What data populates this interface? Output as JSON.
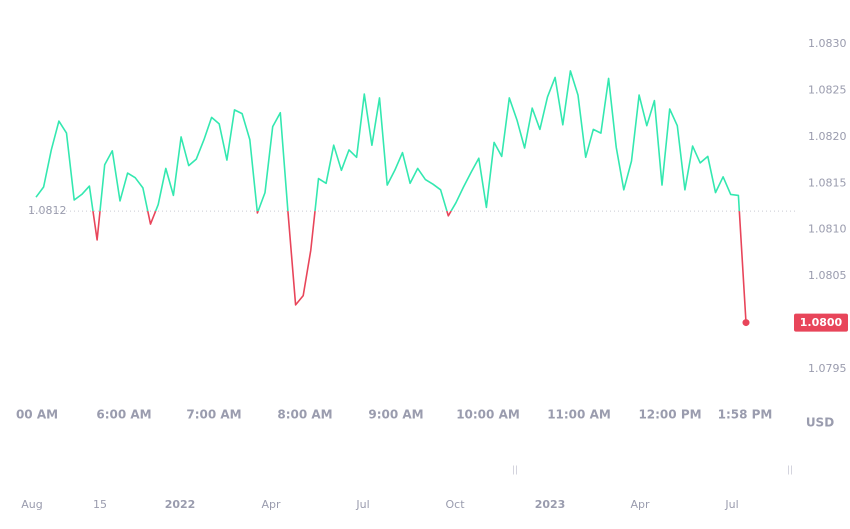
{
  "chart_data": {
    "type": "line",
    "series": [
      {
        "color": "#34e8b0",
        "below_color": "#e8455a",
        "values": [
          1.08135,
          1.08146,
          1.08186,
          1.08217,
          1.08204,
          1.08132,
          1.08138,
          1.08147,
          1.08089,
          1.0817,
          1.08185,
          1.08131,
          1.08161,
          1.08156,
          1.08145,
          1.08106,
          1.08127,
          1.08166,
          1.08137,
          1.082,
          1.08169,
          1.08176,
          1.08197,
          1.08221,
          1.08214,
          1.08175,
          1.08229,
          1.08225,
          1.08197,
          1.08118,
          1.0814,
          1.08211,
          1.08226,
          1.0812,
          1.08019,
          1.08029,
          1.08078,
          1.08155,
          1.0815,
          1.08191,
          1.08164,
          1.08186,
          1.08178,
          1.08246,
          1.08191,
          1.08242,
          1.08148,
          1.08164,
          1.08183,
          1.0815,
          1.08166,
          1.08154,
          1.08149,
          1.08143,
          1.08115,
          1.08129,
          1.08146,
          1.08162,
          1.08177,
          1.08124,
          1.08194,
          1.08179,
          1.08242,
          1.08218,
          1.08188,
          1.08231,
          1.08208,
          1.08243,
          1.08264,
          1.08213,
          1.08271,
          1.08245,
          1.08178,
          1.08208,
          1.08204,
          1.08263,
          1.08189,
          1.08143,
          1.08174,
          1.08245,
          1.08212,
          1.08239,
          1.08148,
          1.0823,
          1.08212,
          1.08143,
          1.0819,
          1.08172,
          1.08179,
          1.0814,
          1.08157,
          1.08138,
          1.08137,
          1.08
        ]
      }
    ],
    "baseline": 1.0812,
    "last_price_label": "1.0800",
    "ylim": [
      1.0795,
      1.083
    ],
    "yticks": [
      {
        "value": 1.083,
        "label": "1.0830"
      },
      1.0825,
      {
        "value": 1.082,
        "label": "1.0820"
      },
      1.0815,
      {
        "value": 1.081,
        "label": "1.0810"
      },
      1.0805,
      {
        "value": 1.08,
        "label": "1.0800"
      },
      1.0795
    ],
    "time_labels": [
      "00 AM",
      "6:00 AM",
      "7:00 AM",
      "8:00 AM",
      "9:00 AM",
      "10:00 AM",
      "11:00 AM",
      "12:00 PM",
      "1:58 PM"
    ],
    "currency": "USD",
    "date_labels": [
      "Aug",
      "15",
      "2022",
      "Apr",
      "Jul",
      "Oct",
      "2023",
      "Apr",
      "Jul"
    ]
  }
}
